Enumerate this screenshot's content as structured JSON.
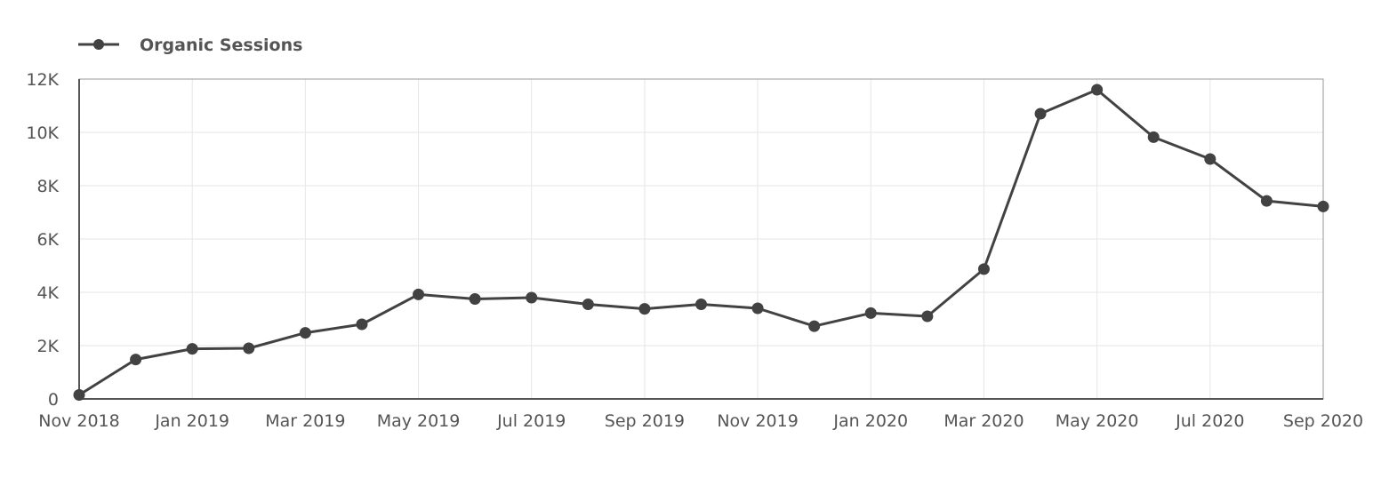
{
  "colors": {
    "series": "#424242",
    "grid": "#e6e6e6",
    "text": "#555555"
  },
  "chart_data": {
    "type": "line",
    "legend": {
      "position": "top-left"
    },
    "grid": true,
    "ylim": [
      0,
      12000
    ],
    "y_ticks": [
      {
        "value": 0,
        "label": "0"
      },
      {
        "value": 2000,
        "label": "2K"
      },
      {
        "value": 4000,
        "label": "4K"
      },
      {
        "value": 6000,
        "label": "6K"
      },
      {
        "value": 8000,
        "label": "8K"
      },
      {
        "value": 10000,
        "label": "10K"
      },
      {
        "value": 12000,
        "label": "12K"
      }
    ],
    "x": [
      "Nov 2018",
      "Dec 2018",
      "Jan 2019",
      "Feb 2019",
      "Mar 2019",
      "Apr 2019",
      "May 2019",
      "Jun 2019",
      "Jul 2019",
      "Aug 2019",
      "Sep 2019",
      "Oct 2019",
      "Nov 2019",
      "Dec 2019",
      "Jan 2020",
      "Feb 2020",
      "Mar 2020",
      "Apr 2020",
      "May 2020",
      "Jun 2020",
      "Jul 2020",
      "Aug 2020",
      "Sep 2020"
    ],
    "x_tick_labels": [
      "Nov 2018",
      "Jan 2019",
      "Mar 2019",
      "May 2019",
      "Jul 2019",
      "Sep 2019",
      "Nov 2019",
      "Jan 2020",
      "Mar 2020",
      "May 2020",
      "Jul 2020",
      "Sep 2020"
    ],
    "series": [
      {
        "name": "Organic Sessions",
        "values": [
          150,
          1480,
          1880,
          1900,
          2480,
          2800,
          3920,
          3750,
          3800,
          3550,
          3380,
          3550,
          3400,
          2730,
          3220,
          3100,
          4870,
          10700,
          11600,
          9820,
          9000,
          7430,
          7220
        ]
      }
    ]
  }
}
